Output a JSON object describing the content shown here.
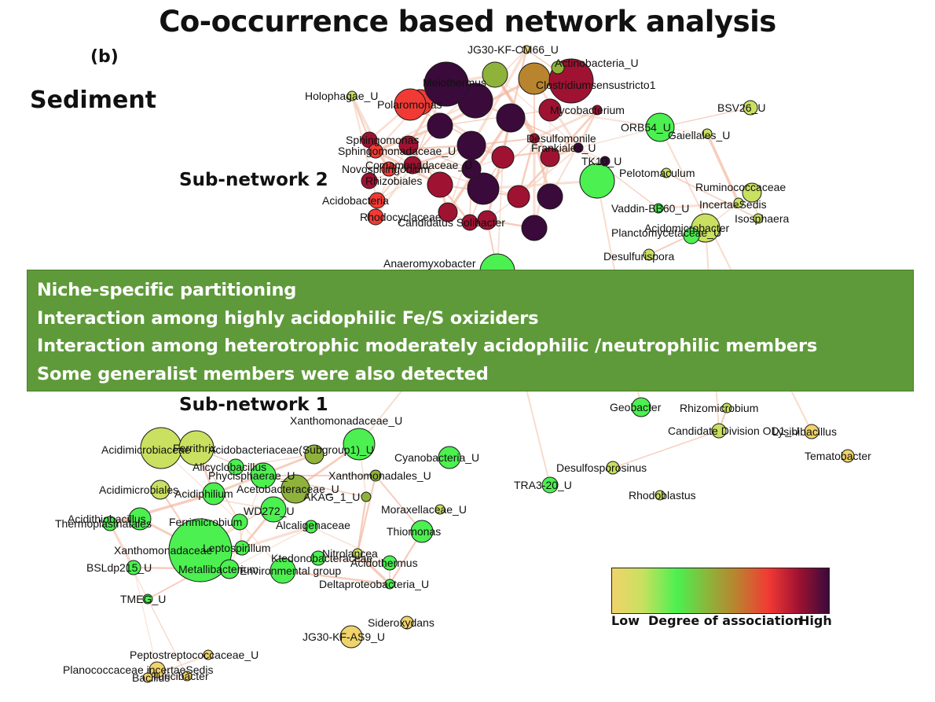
{
  "title": "Co-occurrence based network analysis",
  "panel_label": "(b)",
  "habitat": "Sediment",
  "subnetwork_labels": [
    "Sub-network 2",
    "Sub-network 1"
  ],
  "callout_lines": [
    "Niche-specific partitioning",
    "Interaction among highly acidophilic Fe/S oxiziders",
    "Interaction among heterotrophic moderately acidophilic /neutrophilic members",
    "Some generalist members were also detected"
  ],
  "legend": {
    "low": "Low",
    "label": "Degree of association",
    "high": "High",
    "colors": [
      "#f0d36a",
      "#c9e060",
      "#4cf050",
      "#8fb23a",
      "#b9842e",
      "#f23a34",
      "#a01232",
      "#3a0a3a"
    ]
  },
  "node_labels": [
    "JG30-KF-CM66_U",
    "Actinobacteria_U",
    "Clostridiumsensustricto1",
    "Meiothermus",
    "Holophagae_U",
    "Polaromonas",
    "Mycobacterium",
    "BSV26_U",
    "Sphingomonas",
    "ORB54_U",
    "Gaiellales_U",
    "Desulfomonile",
    "Sphingomonadaceae_U",
    "Comamonadaceae_U",
    "Frankiales_U",
    "Novosphingobium",
    "Rhizobiales",
    "TK10_U",
    "Pelotomaculum",
    "Acidobacteria",
    "Ruminococcaceae",
    "IncertaeSedis",
    "Rhodocyclaceae",
    "Vaddin-BB60_U",
    "Isosphaera",
    "Candidatus Solibacter",
    "Planctomycetaceae_U",
    "Acidomicrobacter",
    "Desulfurispora",
    "Anaeromyxobacter",
    "Geobacter",
    "Rhizomicrobium",
    "Candidate Division OD1_U",
    "Lysinibacillus",
    "Tematobacter",
    "Acidimicrobiaceae",
    "Ferrithrix",
    "Xanthomonadaceae_U",
    "Acidobacteriaceae(Subgroup1)_U",
    "Cyanobacteria_U",
    "Alicyclobacillus",
    "Phycisphaerae_U",
    "Xanthomonadales_U",
    "Acidimicrobiales",
    "Acidiphilium",
    "Acetobacteraceae_U",
    "AKAG_1_U",
    "Desulfosporosinus",
    "TRA3-20_U",
    "Moraxellaceae_U",
    "Rhodoblastus",
    "Acidithiobacillus",
    "WD272_U",
    "Thermoplasmatales",
    "Ferrimicrobium",
    "Alcaligenaceae",
    "Thiomonas",
    "Xanthomonadaceae",
    "Leptospirillum",
    "Metallibacterium",
    "Ktedonobacteraceae",
    "Nitrolancea",
    "Acidothermus",
    "Environmental group",
    "BSLdp215_U",
    "Deltaproteobacteria_U",
    "TMEG_U",
    "Sideroxydans",
    "JG30-KF-AS9_U",
    "Peptostreptococcaceae_U",
    "Planococcaceae incertaeSedis",
    "Turicibacter",
    "Bacillus"
  ]
}
